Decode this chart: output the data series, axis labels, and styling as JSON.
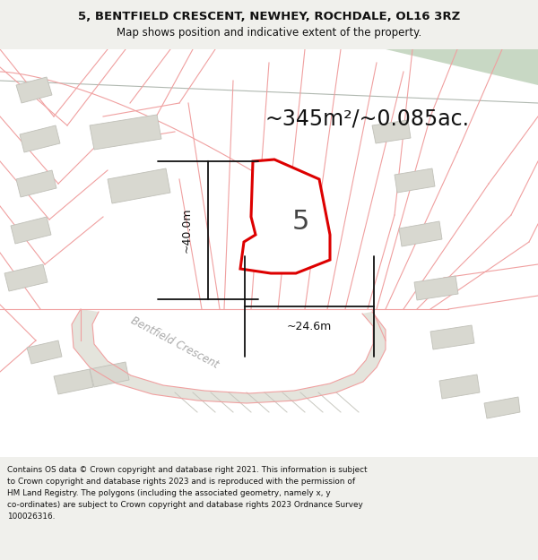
{
  "title_line1": "5, BENTFIELD CRESCENT, NEWHEY, ROCHDALE, OL16 3RZ",
  "title_line2": "Map shows position and indicative extent of the property.",
  "area_text": "~345m²/~0.085ac.",
  "dim_vertical": "~40.0m",
  "dim_horizontal": "~24.6m",
  "plot_number": "5",
  "road_label": "Bentfield Crescent",
  "footer_lines": [
    "Contains OS data © Crown copyright and database right 2021. This information is subject to Crown copyright and database rights 2023 and is reproduced with the permission of",
    "HM Land Registry. The polygons (including the associated geometry, namely x, y co-ordinates) are subject to Crown copyright and database rights 2023 Ordnance Survey",
    "100026316."
  ],
  "bg_color": "#f0f0ec",
  "map_bg": "#ffffff",
  "plot_fill": "#ffffff",
  "plot_edge": "#dd0000",
  "building_fill": "#d8d8d0",
  "building_edge": "#c0c0b8",
  "boundary_color": "#f0a0a0",
  "dim_color": "#111111",
  "green_color": "#c8d8c4",
  "road_surface": "#e4e4dc",
  "hatch_color": "#c8c8c0",
  "road_label_color": "#aaaaaa"
}
